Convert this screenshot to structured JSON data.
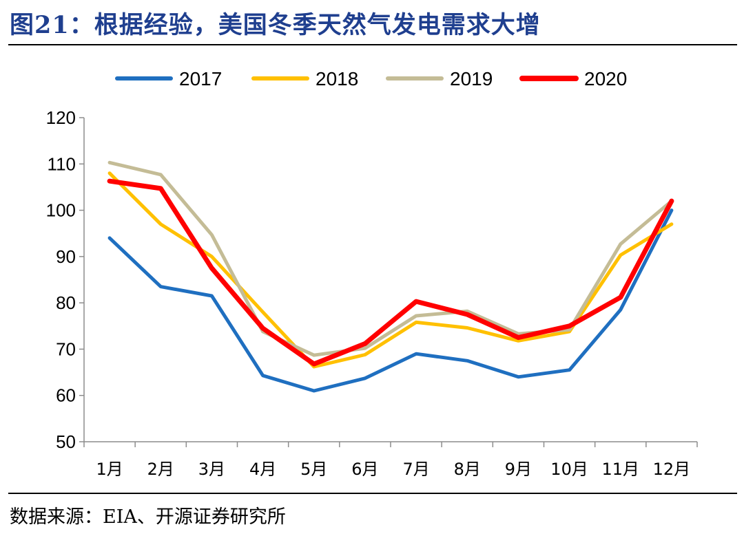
{
  "header": {
    "title": "图21：根据经验，美国冬季天然气发电需求大增"
  },
  "footer": {
    "source": "数据来源：EIA、开源证券研究所"
  },
  "chart_data": {
    "type": "line",
    "title": "",
    "xlabel": "",
    "ylabel": "",
    "ylim": [
      50,
      120
    ],
    "yticks": [
      50,
      60,
      70,
      80,
      90,
      100,
      110,
      120
    ],
    "grid": false,
    "legend_position": "top",
    "categories": [
      "1月",
      "2月",
      "3月",
      "4月",
      "5月",
      "6月",
      "7月",
      "8月",
      "9月",
      "10月",
      "11月",
      "12月"
    ],
    "series": [
      {
        "name": "2017",
        "color": "#1F6FC0",
        "values": [
          94,
          83.5,
          81.5,
          64.3,
          61,
          63.7,
          69,
          67.5,
          64,
          65.5,
          78.5,
          100
        ]
      },
      {
        "name": "2018",
        "color": "#FFC000",
        "values": [
          108,
          97,
          90,
          78,
          66.2,
          68.8,
          75.8,
          74.6,
          71.8,
          73.8,
          90.3,
          97
        ]
      },
      {
        "name": "2019",
        "color": "#C4BC96",
        "values": [
          110.3,
          107.7,
          94.7,
          73.8,
          68.7,
          70.2,
          77.2,
          78.2,
          73.3,
          74.2,
          92.7,
          102
        ]
      },
      {
        "name": "2020",
        "color": "#FF0000",
        "values": [
          106.3,
          104.7,
          87.5,
          74.5,
          66.8,
          71.2,
          80.3,
          77.5,
          72.5,
          75,
          81.2,
          102
        ]
      }
    ]
  }
}
